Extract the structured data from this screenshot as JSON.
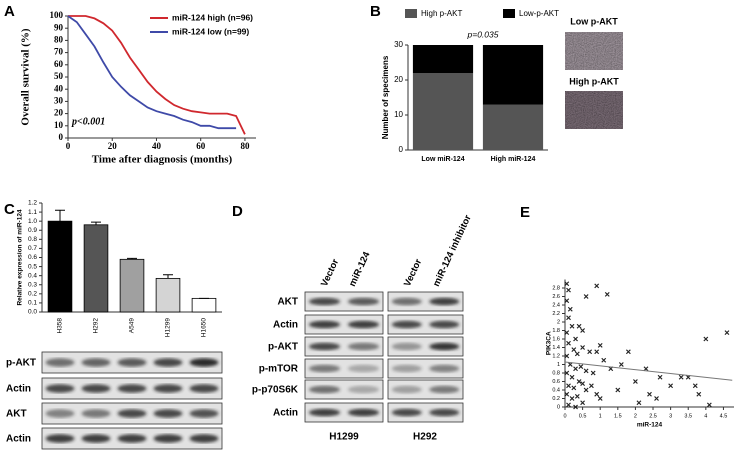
{
  "chart_data": [
    {
      "type": "line",
      "ylabel": "Overall survival  (%)",
      "xlabel": "Time after diagnosis (months)",
      "annotation": "p<0.001",
      "x": [
        0,
        4,
        8,
        12,
        16,
        20,
        24,
        28,
        32,
        36,
        40,
        44,
        48,
        52,
        56,
        60,
        64,
        68,
        72,
        76,
        80
      ],
      "series": [
        {
          "name": "miR-124 high (n=96)",
          "color": "#d0282e",
          "values": [
            100,
            100,
            100,
            98,
            94,
            88,
            78,
            66,
            56,
            46,
            38,
            32,
            27,
            24,
            22,
            21,
            20,
            20,
            20,
            18,
            3
          ]
        },
        {
          "name": "miR-124 low (n=99)",
          "color": "#3f4aa8",
          "values": [
            100,
            95,
            85,
            75,
            62,
            50,
            42,
            35,
            30,
            25,
            22,
            20,
            18,
            15,
            13,
            10,
            10,
            8,
            8,
            8,
            null
          ]
        }
      ],
      "xlim": [
        0,
        85
      ],
      "xticks": [
        0,
        20,
        40,
        60,
        80
      ],
      "ylim": [
        0,
        100
      ],
      "yticks": [
        0,
        10,
        20,
        30,
        40,
        50,
        60,
        70,
        80,
        90,
        100
      ]
    },
    {
      "type": "stacked_bar",
      "ylabel": "Number of specimens",
      "annotation": "p=0.035",
      "categories": [
        "Low miR-124",
        "High miR-124"
      ],
      "series": [
        {
          "name": "High p-AKT",
          "color": "#555555",
          "values": [
            22,
            13
          ]
        },
        {
          "name": "Low-p-AKT",
          "color": "#000000",
          "values": [
            8,
            17
          ]
        }
      ],
      "ylim": [
        0,
        30
      ],
      "yticks": [
        0,
        10,
        20,
        30
      ]
    },
    {
      "type": "bar",
      "ylabel": "Relative expression of miR-124",
      "categories": [
        "H358",
        "H292",
        "A549",
        "H1299",
        "H1650"
      ],
      "values": [
        1.0,
        0.96,
        0.58,
        0.37,
        0.15
      ],
      "errors": [
        0.12,
        0.03,
        0.01,
        0.04,
        0.0
      ],
      "colors": [
        "#000000",
        "#555555",
        "#a0a0a0",
        "#d4d4d4",
        "#ffffff"
      ],
      "ylim": [
        0,
        1.2
      ],
      "yticks": [
        {
          "value": 0,
          "label": "0.0"
        },
        0.1,
        0.2,
        0.3,
        0.4,
        0.5,
        0.6,
        0.7,
        0.8,
        0.9,
        {
          "value": 1,
          "label": "1.0"
        },
        1.1,
        1.2
      ]
    },
    {
      "type": "scatter",
      "ylabel": "PIK3CA",
      "xlabel": "miR-124",
      "color": "#222222",
      "x": [
        0.05,
        0.1,
        0.05,
        0.15,
        0.1,
        0.2,
        0.05,
        0.3,
        0.4,
        0.5,
        0.6,
        0.9,
        1.2,
        0.1,
        0.25,
        0.05,
        0.35,
        0.5,
        0.7,
        0.9,
        1.0,
        1.1,
        0.15,
        0.3,
        0.45,
        0.6,
        0.8,
        0.05,
        0.2,
        0.4,
        0.5,
        0.1,
        0.25,
        0.6,
        0.75,
        0.9,
        0.05,
        0.2,
        0.35,
        0.5,
        0.1,
        0.3,
        1.3,
        1.6,
        1.8,
        2.0,
        2.3,
        2.4,
        2.1,
        2.6,
        3.0,
        3.3,
        3.5,
        3.7,
        3.8,
        4.0,
        4.1,
        4.6,
        1.5,
        2.7,
        1.0
      ],
      "values": [
        2.9,
        2.75,
        2.5,
        2.3,
        2.1,
        1.9,
        1.75,
        1.6,
        1.9,
        1.8,
        2.6,
        2.85,
        2.65,
        1.5,
        1.35,
        1.2,
        1.25,
        1.4,
        1.3,
        1.3,
        1.45,
        1.1,
        1.0,
        0.9,
        0.95,
        0.85,
        0.8,
        0.8,
        0.7,
        0.6,
        0.55,
        0.5,
        0.45,
        0.4,
        0.5,
        0.3,
        0.3,
        0.2,
        0.25,
        0.1,
        0.05,
        0.0,
        0.9,
        1.0,
        1.3,
        0.6,
        0.9,
        0.3,
        0.1,
        0.2,
        0.5,
        0.7,
        0.7,
        0.5,
        0.3,
        1.6,
        0.05,
        1.75,
        0.4,
        0.7,
        0.2
      ],
      "fit": {
        "x": [
          0,
          4.75
        ],
        "values": [
          1.06,
          0.63
        ]
      },
      "xlim": [
        0,
        4.8
      ],
      "xticks": [
        0,
        0.5,
        1,
        1.5,
        2,
        2.5,
        3,
        3.5,
        4,
        4.5
      ],
      "ylim": [
        0,
        3
      ],
      "yticks": [
        0,
        0.2,
        0.4,
        0.6,
        0.8,
        1,
        1.2,
        1.4,
        1.6,
        1.8,
        2,
        2.2,
        2.4,
        2.6,
        2.8
      ]
    }
  ],
  "panel_labels": [
    "A",
    "B",
    "C",
    "D",
    "E"
  ],
  "panel_b_images": [
    "Low p-AKT",
    "High p-AKT"
  ],
  "panel_c_blot": {
    "rows": [
      "p-AKT",
      "Actin",
      "AKT",
      "Actin"
    ]
  },
  "panel_d_blot": {
    "columns": [
      "Vector",
      "miR-124",
      "Vector",
      "miR-124 inhibitor"
    ],
    "rows": [
      "AKT",
      "Actin",
      "p-AKT",
      "p-mTOR",
      "p-p70S6K",
      "Actin"
    ],
    "cell_lines": [
      "H1299",
      "H292"
    ]
  }
}
